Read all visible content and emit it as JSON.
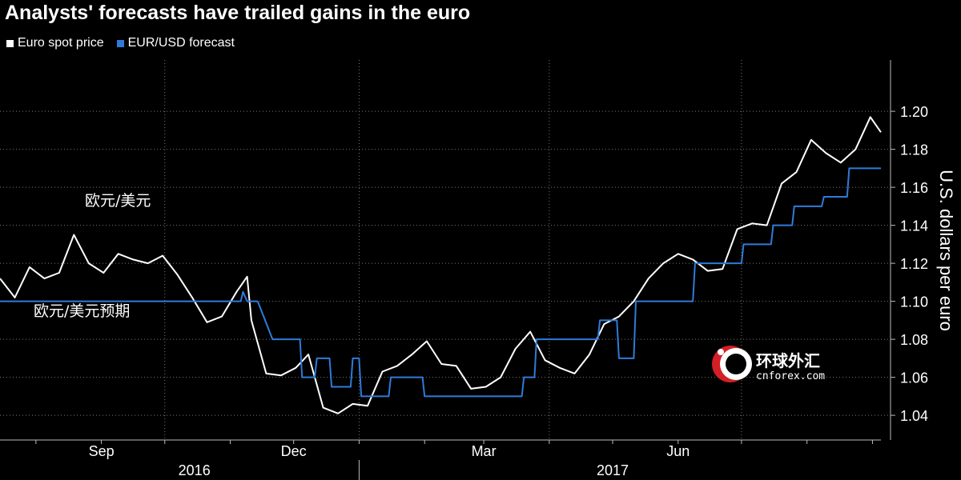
{
  "title": "Analysts' forecasts have trailed gains in the euro",
  "legend": [
    {
      "label": "Euro spot price",
      "color": "#ffffff"
    },
    {
      "label": "EUR/USD forecast",
      "color": "#2f7bd9"
    }
  ],
  "annotations": {
    "spot_cn": "欧元/美元",
    "forecast_cn": "欧元/美元预期"
  },
  "watermark": {
    "cn": "环球外汇",
    "site": "cnforex.com"
  },
  "chart_data": {
    "type": "line",
    "ylabel": "U.S. dollars per euro",
    "ylim": [
      1.027,
      1.227
    ],
    "yticks": [
      1.04,
      1.06,
      1.08,
      1.1,
      1.12,
      1.14,
      1.16,
      1.18,
      1.2
    ],
    "xlim": [
      "2016-07-15",
      "2017-09-05"
    ],
    "x_month_labels": [
      {
        "label": "Sep",
        "date": "2016-09-01"
      },
      {
        "label": "Dec",
        "date": "2016-12-01"
      },
      {
        "label": "Mar",
        "date": "2017-03-01"
      },
      {
        "label": "Jun",
        "date": "2017-06-01"
      }
    ],
    "x_year_labels": [
      {
        "label": "2016",
        "date": "2016-10-15"
      },
      {
        "label": "2017",
        "date": "2017-05-01"
      }
    ],
    "grid": true,
    "series": [
      {
        "name": "Euro spot price",
        "color": "#ffffff",
        "points": [
          [
            "2016-07-15",
            1.112
          ],
          [
            "2016-07-22",
            1.102
          ],
          [
            "2016-07-29",
            1.118
          ],
          [
            "2016-08-05",
            1.112
          ],
          [
            "2016-08-12",
            1.115
          ],
          [
            "2016-08-19",
            1.135
          ],
          [
            "2016-08-26",
            1.12
          ],
          [
            "2016-09-02",
            1.115
          ],
          [
            "2016-09-09",
            1.125
          ],
          [
            "2016-09-16",
            1.122
          ],
          [
            "2016-09-23",
            1.12
          ],
          [
            "2016-09-30",
            1.124
          ],
          [
            "2016-10-07",
            1.114
          ],
          [
            "2016-10-14",
            1.102
          ],
          [
            "2016-10-21",
            1.089
          ],
          [
            "2016-10-28",
            1.092
          ],
          [
            "2016-11-04",
            1.105
          ],
          [
            "2016-11-09",
            1.113
          ],
          [
            "2016-11-11",
            1.09
          ],
          [
            "2016-11-18",
            1.062
          ],
          [
            "2016-11-25",
            1.061
          ],
          [
            "2016-12-02",
            1.065
          ],
          [
            "2016-12-08",
            1.072
          ],
          [
            "2016-12-15",
            1.044
          ],
          [
            "2016-12-22",
            1.041
          ],
          [
            "2016-12-29",
            1.046
          ],
          [
            "2017-01-05",
            1.045
          ],
          [
            "2017-01-12",
            1.063
          ],
          [
            "2017-01-19",
            1.066
          ],
          [
            "2017-01-26",
            1.072
          ],
          [
            "2017-02-02",
            1.079
          ],
          [
            "2017-02-09",
            1.067
          ],
          [
            "2017-02-16",
            1.066
          ],
          [
            "2017-02-23",
            1.054
          ],
          [
            "2017-03-02",
            1.055
          ],
          [
            "2017-03-09",
            1.06
          ],
          [
            "2017-03-16",
            1.075
          ],
          [
            "2017-03-23",
            1.084
          ],
          [
            "2017-03-30",
            1.069
          ],
          [
            "2017-04-06",
            1.065
          ],
          [
            "2017-04-13",
            1.062
          ],
          [
            "2017-04-20",
            1.072
          ],
          [
            "2017-04-27",
            1.088
          ],
          [
            "2017-05-04",
            1.092
          ],
          [
            "2017-05-11",
            1.1
          ],
          [
            "2017-05-18",
            1.112
          ],
          [
            "2017-05-25",
            1.12
          ],
          [
            "2017-06-01",
            1.125
          ],
          [
            "2017-06-08",
            1.122
          ],
          [
            "2017-06-15",
            1.116
          ],
          [
            "2017-06-22",
            1.117
          ],
          [
            "2017-06-29",
            1.138
          ],
          [
            "2017-07-06",
            1.141
          ],
          [
            "2017-07-13",
            1.14
          ],
          [
            "2017-07-20",
            1.162
          ],
          [
            "2017-07-27",
            1.168
          ],
          [
            "2017-08-03",
            1.185
          ],
          [
            "2017-08-10",
            1.178
          ],
          [
            "2017-08-17",
            1.173
          ],
          [
            "2017-08-24",
            1.18
          ],
          [
            "2017-08-31",
            1.197
          ],
          [
            "2017-09-05",
            1.189
          ]
        ]
      },
      {
        "name": "EUR/USD forecast",
        "color": "#2f7bd9",
        "points": [
          [
            "2016-07-15",
            1.1
          ],
          [
            "2016-11-06",
            1.1
          ],
          [
            "2016-11-07",
            1.105
          ],
          [
            "2016-11-09",
            1.1
          ],
          [
            "2016-11-14",
            1.1
          ],
          [
            "2016-11-21",
            1.08
          ],
          [
            "2016-12-04",
            1.08
          ],
          [
            "2016-12-05",
            1.06
          ],
          [
            "2016-12-11",
            1.06
          ],
          [
            "2016-12-12",
            1.07
          ],
          [
            "2016-12-18",
            1.07
          ],
          [
            "2016-12-19",
            1.055
          ],
          [
            "2016-12-28",
            1.055
          ],
          [
            "2016-12-29",
            1.07
          ],
          [
            "2017-01-01",
            1.07
          ],
          [
            "2017-01-02",
            1.05
          ],
          [
            "2017-01-15",
            1.05
          ],
          [
            "2017-01-16",
            1.06
          ],
          [
            "2017-01-31",
            1.06
          ],
          [
            "2017-02-01",
            1.05
          ],
          [
            "2017-03-19",
            1.05
          ],
          [
            "2017-03-20",
            1.06
          ],
          [
            "2017-03-25",
            1.06
          ],
          [
            "2017-03-26",
            1.08
          ],
          [
            "2017-04-24",
            1.08
          ],
          [
            "2017-04-25",
            1.09
          ],
          [
            "2017-05-03",
            1.09
          ],
          [
            "2017-05-04",
            1.07
          ],
          [
            "2017-05-11",
            1.07
          ],
          [
            "2017-05-12",
            1.1
          ],
          [
            "2017-06-08",
            1.1
          ],
          [
            "2017-06-09",
            1.12
          ],
          [
            "2017-07-01",
            1.12
          ],
          [
            "2017-07-02",
            1.13
          ],
          [
            "2017-07-15",
            1.13
          ],
          [
            "2017-07-16",
            1.14
          ],
          [
            "2017-07-25",
            1.14
          ],
          [
            "2017-07-26",
            1.15
          ],
          [
            "2017-08-08",
            1.15
          ],
          [
            "2017-08-09",
            1.155
          ],
          [
            "2017-08-20",
            1.155
          ],
          [
            "2017-08-21",
            1.17
          ],
          [
            "2017-09-05",
            1.17
          ]
        ]
      }
    ]
  }
}
